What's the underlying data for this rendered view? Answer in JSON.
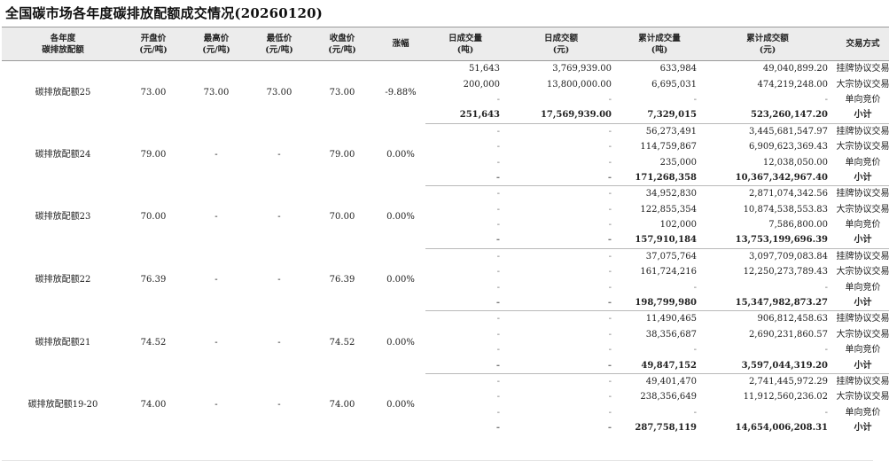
{
  "title": "全国碳市场各年度碳排放配额成交情况(20260120)",
  "headers": [
    "各年度\n碳排放配额",
    "开盘价\n(元/吨)",
    "最高价\n(元/吨)",
    "最低价\n(元/吨)",
    "收盘价\n(元/吨)",
    "涨幅",
    "日成交量\n(吨)",
    "日成交额\n(元)",
    "累计成交量\n(吨)",
    "累计成交额\n(元)",
    "交易方式"
  ],
  "groups": [
    {
      "name": "碳排放配额25",
      "open": "73.00",
      "high": "73.00",
      "low": "73.00",
      "close": "73.00",
      "change": "-9.88%",
      "rows": [
        {
          "vol": "51,643",
          "amt": "3,769,939.00",
          "cvol": "633,984",
          "camt": "49,040,899.20",
          "method": "挂牌协议交易"
        },
        {
          "vol": "200,000",
          "amt": "13,800,000.00",
          "cvol": "6,695,031",
          "camt": "474,219,248.00",
          "method": "大宗协议交易"
        },
        {
          "vol": "-",
          "amt": "-",
          "cvol": "-",
          "camt": "-",
          "method": "单向竞价"
        },
        {
          "vol": "251,643",
          "amt": "17,569,939.00",
          "cvol": "7,329,015",
          "camt": "523,260,147.20",
          "method": "小计"
        }
      ]
    },
    {
      "name": "碳排放配额24",
      "open": "79.00",
      "high": "-",
      "low": "-",
      "close": "79.00",
      "change": "0.00%",
      "rows": [
        {
          "vol": "-",
          "amt": "-",
          "cvol": "56,273,491",
          "camt": "3,445,681,547.97",
          "method": "挂牌协议交易"
        },
        {
          "vol": "-",
          "amt": "-",
          "cvol": "114,759,867",
          "camt": "6,909,623,369.43",
          "method": "大宗协议交易"
        },
        {
          "vol": "-",
          "amt": "-",
          "cvol": "235,000",
          "camt": "12,038,050.00",
          "method": "单向竞价"
        },
        {
          "vol": "-",
          "amt": "-",
          "cvol": "171,268,358",
          "camt": "10,367,342,967.40",
          "method": "小计"
        }
      ]
    },
    {
      "name": "碳排放配额23",
      "open": "70.00",
      "high": "-",
      "low": "-",
      "close": "70.00",
      "change": "0.00%",
      "rows": [
        {
          "vol": "-",
          "amt": "-",
          "cvol": "34,952,830",
          "camt": "2,871,074,342.56",
          "method": "挂牌协议交易"
        },
        {
          "vol": "-",
          "amt": "-",
          "cvol": "122,855,354",
          "camt": "10,874,538,553.83",
          "method": "大宗协议交易"
        },
        {
          "vol": "-",
          "amt": "-",
          "cvol": "102,000",
          "camt": "7,586,800.00",
          "method": "单向竞价"
        },
        {
          "vol": "-",
          "amt": "-",
          "cvol": "157,910,184",
          "camt": "13,753,199,696.39",
          "method": "小计"
        }
      ]
    },
    {
      "name": "碳排放配额22",
      "open": "76.39",
      "high": "-",
      "low": "-",
      "close": "76.39",
      "change": "0.00%",
      "rows": [
        {
          "vol": "-",
          "amt": "-",
          "cvol": "37,075,764",
          "camt": "3,097,709,083.84",
          "method": "挂牌协议交易"
        },
        {
          "vol": "-",
          "amt": "-",
          "cvol": "161,724,216",
          "camt": "12,250,273,789.43",
          "method": "大宗协议交易"
        },
        {
          "vol": "-",
          "amt": "-",
          "cvol": "-",
          "camt": "-",
          "method": "单向竞价"
        },
        {
          "vol": "-",
          "amt": "-",
          "cvol": "198,799,980",
          "camt": "15,347,982,873.27",
          "method": "小计"
        }
      ]
    },
    {
      "name": "碳排放配额21",
      "open": "74.52",
      "high": "-",
      "low": "-",
      "close": "74.52",
      "change": "0.00%",
      "rows": [
        {
          "vol": "-",
          "amt": "-",
          "cvol": "11,490,465",
          "camt": "906,812,458.63",
          "method": "挂牌协议交易"
        },
        {
          "vol": "-",
          "amt": "-",
          "cvol": "38,356,687",
          "camt": "2,690,231,860.57",
          "method": "大宗协议交易"
        },
        {
          "vol": "-",
          "amt": "-",
          "cvol": "-",
          "camt": "-",
          "method": "单向竞价"
        },
        {
          "vol": "-",
          "amt": "-",
          "cvol": "49,847,152",
          "camt": "3,597,044,319.20",
          "method": "小计"
        }
      ]
    },
    {
      "name": "碳排放配额19-20",
      "open": "74.00",
      "high": "-",
      "low": "-",
      "close": "74.00",
      "change": "0.00%",
      "rows": [
        {
          "vol": "-",
          "amt": "-",
          "cvol": "49,401,470",
          "camt": "2,741,445,972.29",
          "method": "挂牌协议交易"
        },
        {
          "vol": "-",
          "amt": "-",
          "cvol": "238,356,649",
          "camt": "11,912,560,236.02",
          "method": "大宗协议交易"
        },
        {
          "vol": "-",
          "amt": "-",
          "cvol": "-",
          "camt": "-",
          "method": "单向竞价"
        },
        {
          "vol": "-",
          "amt": "-",
          "cvol": "287,758,119",
          "camt": "14,654,006,208.31",
          "method": "小计"
        }
      ]
    }
  ]
}
